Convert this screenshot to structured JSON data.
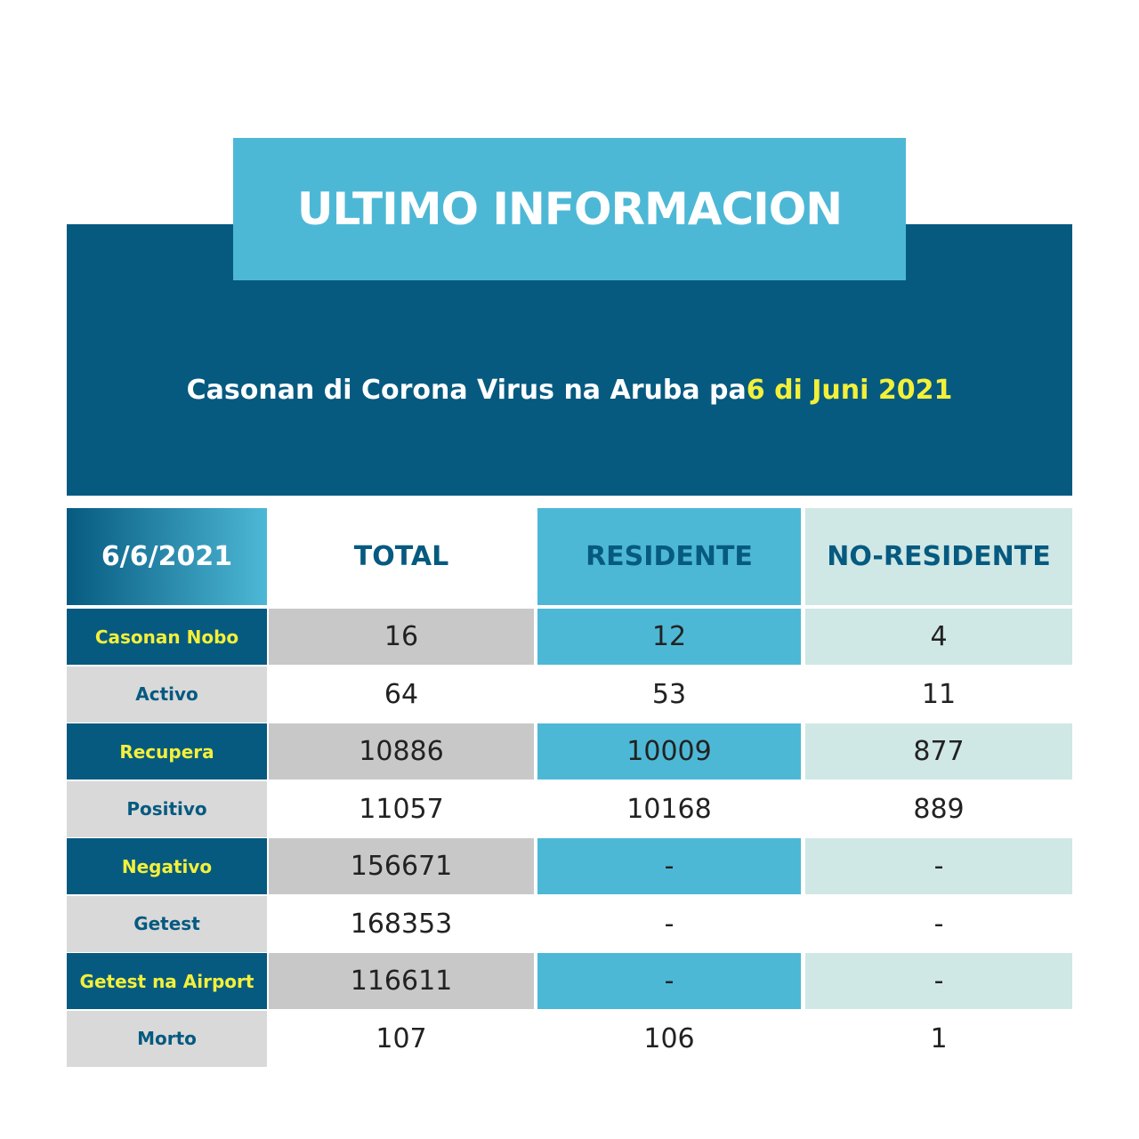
{
  "header": {
    "title": "ULTIMO INFORMACION",
    "subtitle": "Casonan di Corona Virus na Aruba pa",
    "subtitle_date": "6 di Juni 2021"
  },
  "table": {
    "corner": "6/6/2021",
    "columns": [
      "TOTAL",
      "RESIDENTE",
      "NO-RESIDENTE"
    ],
    "rows": [
      [
        "Casonan Nobo",
        16,
        12,
        4
      ],
      [
        "Activo",
        64,
        53,
        11
      ],
      [
        "Recupera",
        10886,
        10009,
        877
      ],
      [
        "Positivo",
        11057,
        10168,
        889
      ],
      [
        "Negativo",
        156671,
        "-",
        "-"
      ],
      [
        "Getest",
        168353,
        "-",
        "-"
      ],
      [
        "Getest na Airport",
        116611,
        "-",
        "-"
      ],
      [
        "Morto",
        107,
        106,
        1
      ]
    ]
  }
}
